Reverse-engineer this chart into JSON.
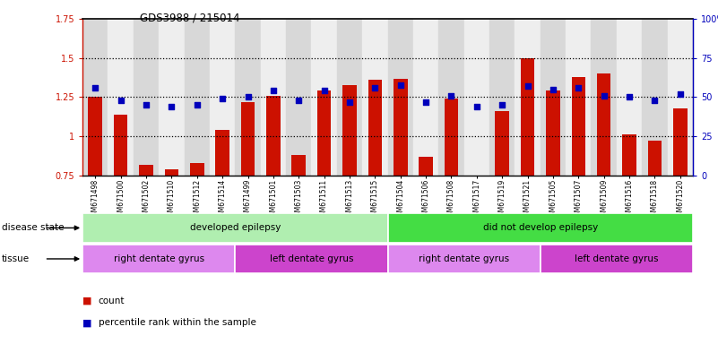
{
  "title": "GDS3988 / 215014",
  "samples": [
    "GSM671498",
    "GSM671500",
    "GSM671502",
    "GSM671510",
    "GSM671512",
    "GSM671514",
    "GSM671499",
    "GSM671501",
    "GSM671503",
    "GSM671511",
    "GSM671513",
    "GSM671515",
    "GSM671504",
    "GSM671506",
    "GSM671508",
    "GSM671517",
    "GSM671519",
    "GSM671521",
    "GSM671505",
    "GSM671507",
    "GSM671509",
    "GSM671516",
    "GSM671518",
    "GSM671520"
  ],
  "counts": [
    1.25,
    1.14,
    0.82,
    0.79,
    0.83,
    1.04,
    1.22,
    1.26,
    0.88,
    1.29,
    1.33,
    1.36,
    1.37,
    0.87,
    1.24,
    0.75,
    1.16,
    1.5,
    1.29,
    1.38,
    1.4,
    1.01,
    0.97,
    1.18
  ],
  "percentiles": [
    56,
    48,
    45,
    44,
    45,
    49,
    50,
    54,
    48,
    54,
    47,
    56,
    58,
    47,
    51,
    44,
    45,
    57,
    55,
    56,
    51,
    50,
    48,
    52
  ],
  "bar_color": "#cc1100",
  "dot_color": "#0000bb",
  "ylim_left": [
    0.75,
    1.75
  ],
  "ylim_right": [
    0,
    100
  ],
  "yticks_left": [
    0.75,
    1.0,
    1.25,
    1.5,
    1.75
  ],
  "yticks_right": [
    0,
    25,
    50,
    75,
    100
  ],
  "ytick_labels_left": [
    "0.75",
    "1",
    "1.25",
    "1.5",
    "1.75"
  ],
  "ytick_labels_right": [
    "0",
    "25",
    "50",
    "75",
    "100%"
  ],
  "hlines": [
    1.0,
    1.25,
    1.5
  ],
  "disease_groups": [
    {
      "label": "developed epilepsy",
      "start": 0,
      "end": 12,
      "color": "#b0eeb0"
    },
    {
      "label": "did not develop epilepsy",
      "start": 12,
      "end": 24,
      "color": "#44dd44"
    }
  ],
  "tissue_groups": [
    {
      "label": "right dentate gyrus",
      "start": 0,
      "end": 6,
      "color": "#dd88ee"
    },
    {
      "label": "left dentate gyrus",
      "start": 6,
      "end": 12,
      "color": "#cc44cc"
    },
    {
      "label": "right dentate gyrus",
      "start": 12,
      "end": 18,
      "color": "#dd88ee"
    },
    {
      "label": "left dentate gyrus",
      "start": 18,
      "end": 24,
      "color": "#cc44cc"
    }
  ],
  "legend_count_label": "count",
  "legend_pct_label": "percentile rank within the sample",
  "row_label_disease": "disease state",
  "row_label_tissue": "tissue",
  "bar_width": 0.55,
  "col_bg_even": "#d8d8d8",
  "col_bg_odd": "#eeeeee"
}
